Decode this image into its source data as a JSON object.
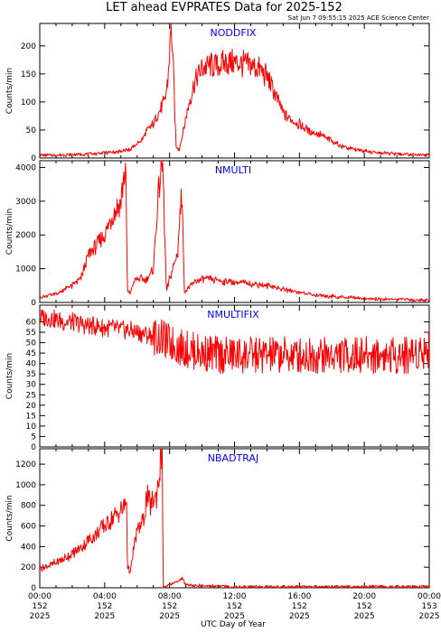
{
  "title": "LET ahead EVPRATES Data for 2025-152",
  "timestamp": "Sat Jun  7 09:55:15 2025 ACE Science Center",
  "colors": {
    "series": "#ff0000",
    "panel_label": "#0000ff",
    "axes": "#000000"
  },
  "chart_data": [
    {
      "type": "line",
      "name": "NODDFIX",
      "xlabel": "",
      "ylabel": "Counts/min",
      "xlim": [
        0,
        24
      ],
      "ylim": [
        0,
        240
      ],
      "yticks": [
        0,
        50,
        100,
        150,
        200
      ],
      "x": [
        0,
        1,
        2,
        3,
        4,
        5,
        5.5,
        5.8,
        6,
        6.2,
        6.4,
        6.6,
        6.8,
        7,
        7.2,
        7.5,
        7.7,
        7.9,
        8.0,
        8.1,
        8.2,
        8.4,
        8.6,
        9,
        9.3,
        9.6,
        10,
        10.5,
        11,
        11.5,
        12,
        12.5,
        13,
        13.5,
        14,
        14.5,
        15,
        15.5,
        16,
        16.5,
        17,
        17.5,
        18,
        18.5,
        19,
        20,
        21,
        22,
        23,
        24
      ],
      "y": [
        5,
        5,
        6,
        7,
        9,
        12,
        15,
        20,
        25,
        30,
        38,
        48,
        55,
        60,
        75,
        90,
        100,
        140,
        190,
        240,
        180,
        20,
        15,
        70,
        110,
        140,
        160,
        165,
        165,
        170,
        170,
        168,
        165,
        160,
        145,
        115,
        80,
        68,
        60,
        50,
        45,
        38,
        30,
        22,
        17,
        12,
        9,
        7,
        6,
        5
      ]
    },
    {
      "type": "line",
      "name": "NMULTI",
      "xlabel": "",
      "ylabel": "Counts/min",
      "xlim": [
        0,
        24
      ],
      "ylim": [
        0,
        4200
      ],
      "yticks": [
        0,
        1000,
        2000,
        3000,
        4000
      ],
      "x": [
        0,
        1,
        2,
        2.5,
        3,
        3.5,
        4,
        4.5,
        5.0,
        5.2,
        5.3,
        5.4,
        5.6,
        5.8,
        6.0,
        6.3,
        6.5,
        6.8,
        7.0,
        7.2,
        7.5,
        7.6,
        7.8,
        8.0,
        8.2,
        8.5,
        8.7,
        8.8,
        8.9,
        9.0,
        9.2,
        9.6,
        10,
        11,
        12,
        13,
        14,
        15,
        16,
        17,
        18,
        19,
        20,
        21,
        22,
        23,
        24
      ],
      "y": [
        150,
        250,
        500,
        700,
        1400,
        1700,
        2000,
        2600,
        3000,
        3800,
        3900,
        300,
        300,
        600,
        700,
        700,
        650,
        800,
        1000,
        2500,
        4200,
        3800,
        300,
        700,
        1000,
        1500,
        3000,
        3100,
        300,
        400,
        450,
        600,
        700,
        650,
        600,
        550,
        500,
        400,
        300,
        220,
        180,
        150,
        120,
        100,
        90,
        80,
        70
      ]
    },
    {
      "type": "line",
      "name": "NMULTIFIX",
      "xlabel": "",
      "ylabel": "Counts/min",
      "xlim": [
        0,
        24
      ],
      "ylim": [
        0,
        68
      ],
      "yticks": [
        0,
        5,
        10,
        15,
        20,
        25,
        30,
        35,
        40,
        45,
        50,
        55,
        60
      ],
      "x": [
        0,
        0.5,
        1,
        1.5,
        2,
        2.5,
        3,
        3.5,
        4,
        4.5,
        5,
        5.5,
        6,
        6.5,
        7,
        7.5,
        8,
        8.5,
        9,
        9.5,
        10,
        10.5,
        11,
        11.5,
        12,
        12.5,
        13,
        13.5,
        14,
        14.5,
        15,
        15.5,
        16,
        16.5,
        17,
        17.5,
        18,
        18.5,
        19,
        19.5,
        20,
        20.5,
        21,
        21.5,
        22,
        22.5,
        23,
        23.5,
        24
      ],
      "y": [
        62,
        62,
        61,
        60,
        60,
        59,
        58,
        58,
        57,
        57,
        56,
        56,
        55,
        54,
        53,
        52,
        50,
        48,
        47,
        46,
        45,
        45,
        44,
        44,
        44,
        44,
        44,
        44,
        44,
        44,
        44,
        44,
        44,
        44,
        44,
        44,
        44,
        44,
        44,
        44,
        44,
        44,
        44,
        44,
        44,
        44,
        45,
        46,
        47
      ]
    },
    {
      "type": "line",
      "name": "NBADTRAJ",
      "xlabel": "UTC Day of Year",
      "ylabel": "Counts/min",
      "xlim": [
        0,
        24
      ],
      "ylim": [
        0,
        1350
      ],
      "yticks": [
        0,
        200,
        400,
        600,
        800,
        1000,
        1200
      ],
      "x": [
        0,
        0.5,
        1,
        1.5,
        2,
        2.5,
        3,
        3.5,
        4,
        4.5,
        5.0,
        5.2,
        5.35,
        5.4,
        5.6,
        5.8,
        6.0,
        6.2,
        6.4,
        6.6,
        6.8,
        7.0,
        7.2,
        7.4,
        7.5,
        7.55,
        7.6,
        8.0,
        8.2,
        8.6,
        8.8,
        9.0,
        9.5,
        10,
        12,
        14,
        16,
        18,
        20,
        22,
        24
      ],
      "y": [
        180,
        210,
        240,
        280,
        330,
        380,
        460,
        530,
        600,
        680,
        750,
        780,
        850,
        200,
        150,
        400,
        550,
        600,
        650,
        900,
        800,
        850,
        900,
        1150,
        1300,
        1350,
        5,
        30,
        40,
        70,
        90,
        30,
        20,
        20,
        10,
        10,
        10,
        10,
        10,
        10,
        10
      ]
    }
  ],
  "x_ticks": [
    {
      "t": 0,
      "time": "00:00",
      "day": "152",
      "year": "2025"
    },
    {
      "t": 4,
      "time": "04:00",
      "day": "152",
      "year": "2025"
    },
    {
      "t": 8,
      "time": "08:00",
      "day": "152",
      "year": "2025"
    },
    {
      "t": 12,
      "time": "12:00",
      "day": "152",
      "year": "2025"
    },
    {
      "t": 16,
      "time": "16:00",
      "day": "152",
      "year": "2025"
    },
    {
      "t": 20,
      "time": "20:00",
      "day": "152",
      "year": "2025"
    },
    {
      "t": 24,
      "time": "00:00",
      "day": "153",
      "year": "2025"
    }
  ]
}
